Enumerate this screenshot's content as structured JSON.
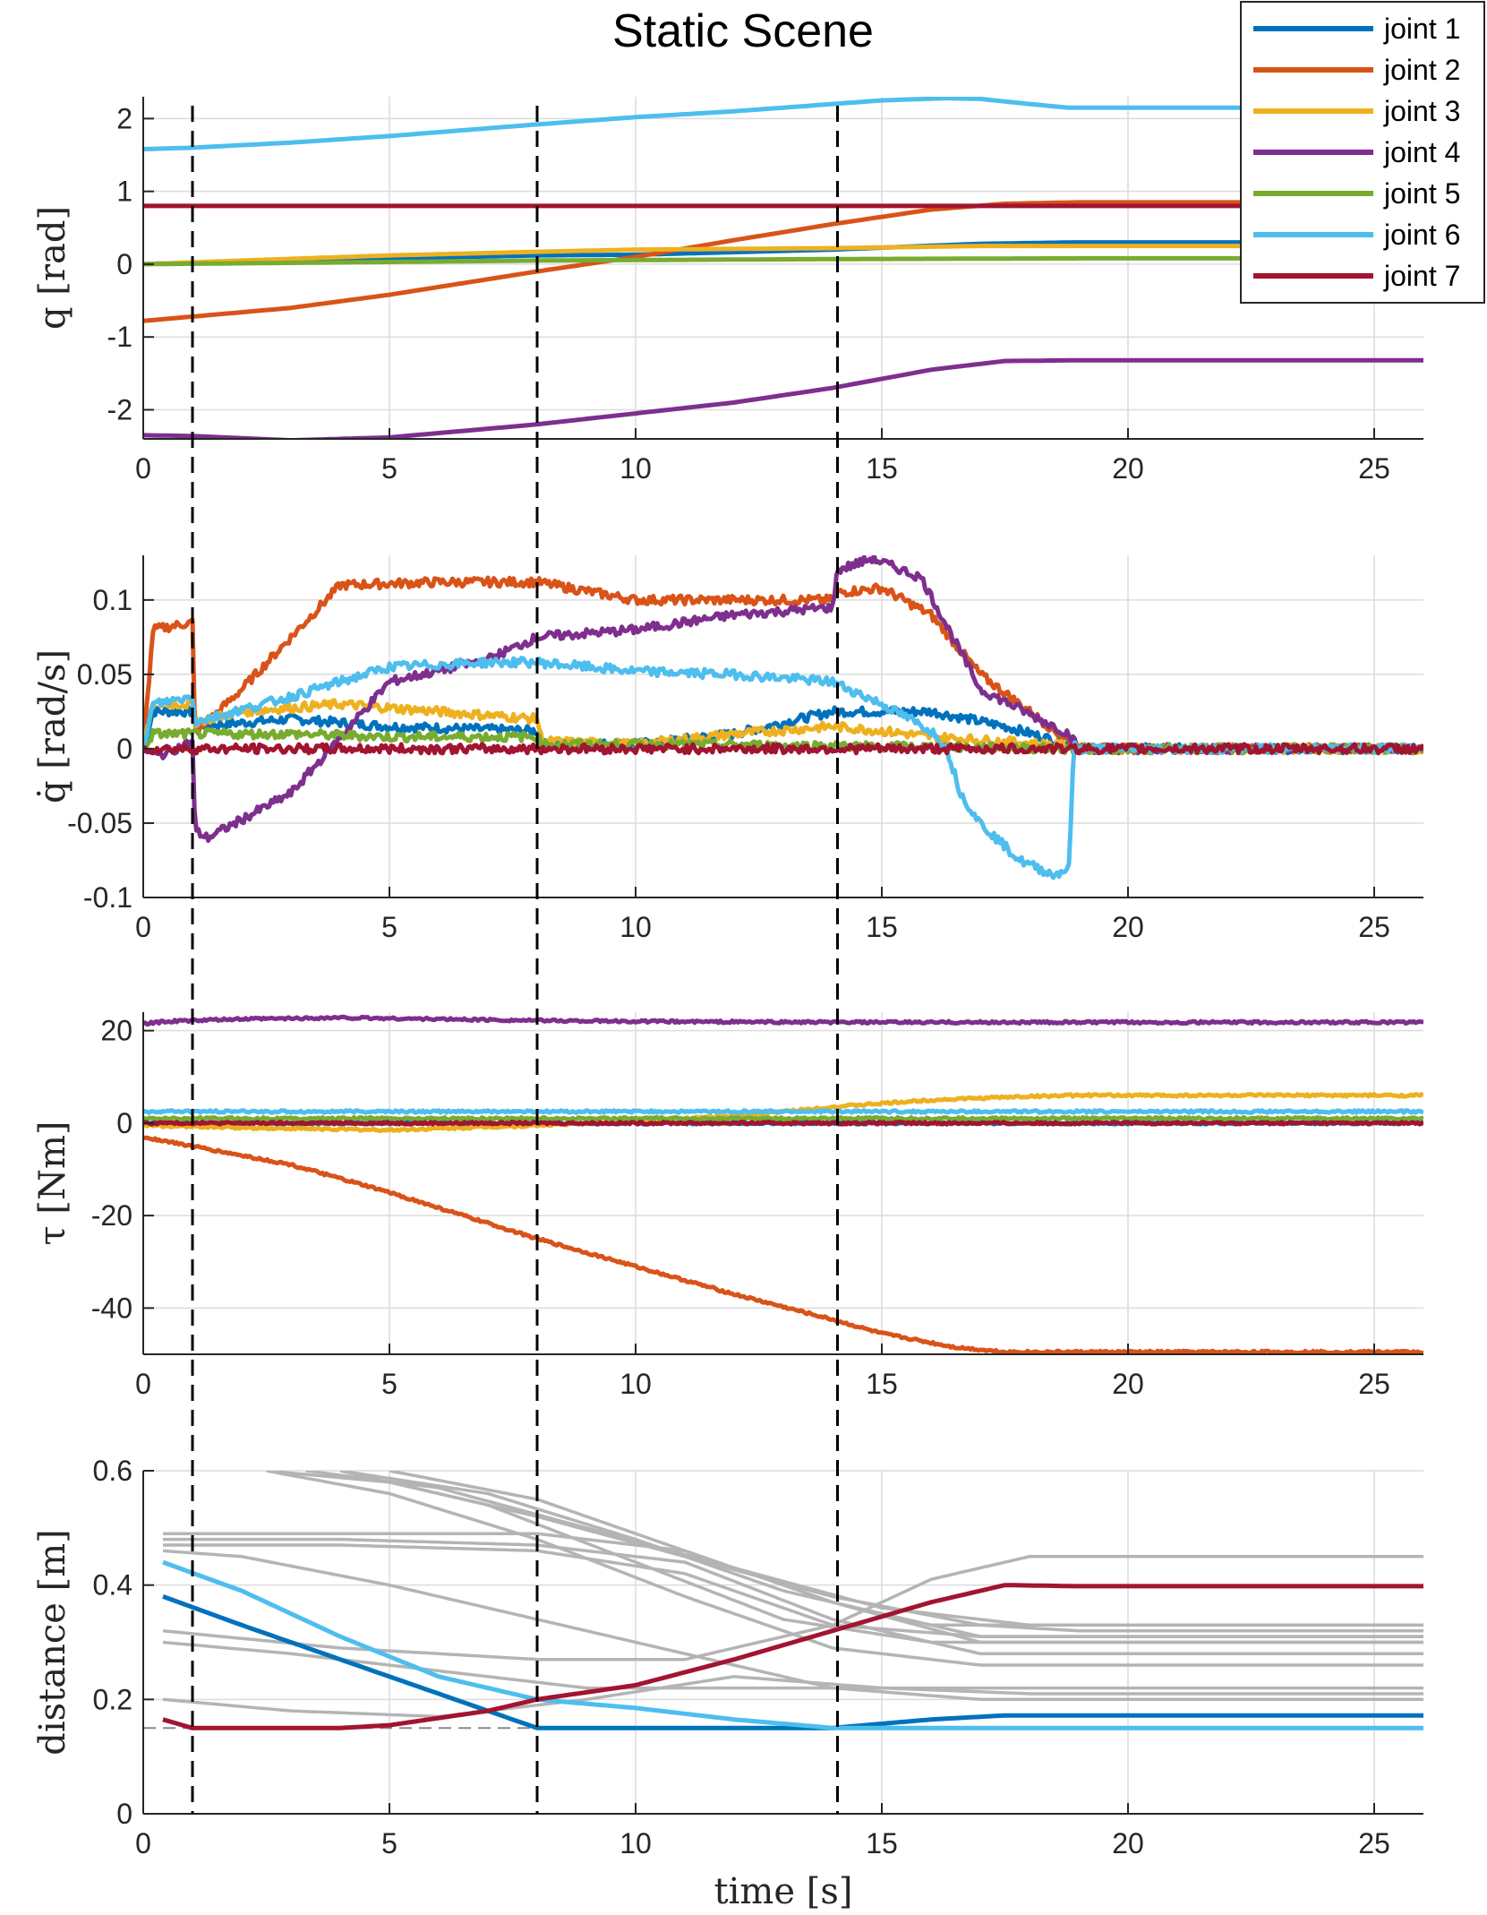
{
  "title": "Static Scene",
  "legend": {
    "position": "top-right",
    "entries": [
      {
        "name": "joint 1",
        "color": "#0072BD"
      },
      {
        "name": "joint 2",
        "color": "#D95319"
      },
      {
        "name": "joint 3",
        "color": "#EDB120"
      },
      {
        "name": "joint 4",
        "color": "#7E2F8E"
      },
      {
        "name": "joint 5",
        "color": "#77AC30"
      },
      {
        "name": "joint 6",
        "color": "#4DBEEE"
      },
      {
        "name": "joint 7",
        "color": "#A2142F"
      }
    ]
  },
  "events_x": [
    1,
    8,
    14.1
  ],
  "chart_data": [
    {
      "type": "line",
      "ylabel": "q [rad]",
      "xlabel": "",
      "xlim": [
        0,
        26
      ],
      "ylim": [
        -2.4,
        2.3
      ],
      "yticks": [
        -2,
        -1,
        0,
        1,
        2
      ],
      "ytick_labels": [
        "-2",
        "-1",
        "0",
        "1",
        "2"
      ],
      "xticks": [
        0,
        5,
        10,
        15,
        20,
        25
      ],
      "xtick_labels": [
        "0",
        "5",
        "10",
        "15",
        "20",
        "25"
      ],
      "grid": true,
      "series": [
        {
          "name": "joint 1",
          "color": "#0072BD",
          "x": [
            0,
            1,
            5,
            8,
            10,
            14,
            17,
            19,
            26
          ],
          "y": [
            0,
            0.02,
            0.08,
            0.12,
            0.13,
            0.2,
            0.28,
            0.3,
            0.3
          ]
        },
        {
          "name": "joint 2",
          "color": "#D95319",
          "x": [
            0,
            1,
            3,
            5,
            8,
            10,
            12,
            14,
            16,
            17.5,
            19,
            26
          ],
          "y": [
            -0.78,
            -0.72,
            -0.6,
            -0.42,
            -0.1,
            0.1,
            0.33,
            0.55,
            0.75,
            0.83,
            0.85,
            0.85
          ]
        },
        {
          "name": "joint 3",
          "color": "#EDB120",
          "x": [
            0,
            2,
            5,
            8,
            10,
            14,
            17,
            19,
            26
          ],
          "y": [
            0,
            0.05,
            0.12,
            0.17,
            0.2,
            0.22,
            0.25,
            0.25,
            0.25
          ]
        },
        {
          "name": "joint 4",
          "color": "#7E2F8E",
          "x": [
            0,
            1,
            3,
            5,
            8,
            10,
            12,
            14,
            16,
            17.5,
            19,
            26
          ],
          "y": [
            -2.35,
            -2.36,
            -2.42,
            -2.38,
            -2.2,
            -2.05,
            -1.9,
            -1.7,
            -1.45,
            -1.33,
            -1.32,
            -1.32
          ]
        },
        {
          "name": "joint 5",
          "color": "#77AC30",
          "x": [
            0,
            5,
            8,
            14,
            19,
            26
          ],
          "y": [
            0,
            0.03,
            0.05,
            0.07,
            0.08,
            0.08
          ]
        },
        {
          "name": "joint 6",
          "color": "#4DBEEE",
          "x": [
            0,
            1,
            3,
            5,
            8,
            10,
            12,
            14,
            15,
            16.3,
            17,
            18,
            18.8,
            20,
            26
          ],
          "y": [
            1.58,
            1.6,
            1.67,
            1.76,
            1.92,
            2.02,
            2.1,
            2.2,
            2.25,
            2.28,
            2.27,
            2.2,
            2.15,
            2.15,
            2.15
          ]
        },
        {
          "name": "joint 7",
          "color": "#A2142F",
          "x": [
            0,
            26
          ],
          "y": [
            0.8,
            0.8
          ]
        }
      ]
    },
    {
      "type": "line",
      "ylabel": "q̇ [rad/s]",
      "xlabel": "",
      "xlim": [
        0,
        26
      ],
      "ylim": [
        -0.1,
        0.13
      ],
      "yticks": [
        -0.1,
        -0.05,
        0,
        0.05,
        0.1
      ],
      "ytick_labels": [
        "-0.1",
        "-0.05",
        "0",
        "0.05",
        "0.1"
      ],
      "xticks": [
        0,
        5,
        10,
        15,
        20,
        25
      ],
      "xtick_labels": [
        "0",
        "5",
        "10",
        "15",
        "20",
        "25"
      ],
      "grid": true,
      "noise": 0.003,
      "series": [
        {
          "name": "joint 1",
          "color": "#0072BD",
          "x": [
            0,
            0.2,
            1,
            1.05,
            3,
            5,
            8,
            8.1,
            10,
            12,
            14,
            16,
            17.5,
            18.8,
            19,
            26
          ],
          "y": [
            0,
            0.025,
            0.025,
            0.015,
            0.02,
            0.015,
            0.012,
            0.003,
            0.003,
            0.01,
            0.025,
            0.025,
            0.015,
            0.003,
            0,
            0
          ]
        },
        {
          "name": "joint 2",
          "color": "#D95319",
          "x": [
            0,
            0.2,
            1,
            1.05,
            2,
            4,
            6,
            8,
            10,
            12,
            14,
            14.1,
            15,
            16,
            17,
            18.8,
            19,
            26
          ],
          "y": [
            0,
            0.08,
            0.085,
            0.01,
            0.04,
            0.11,
            0.112,
            0.112,
            0.1,
            0.1,
            0.1,
            0.105,
            0.108,
            0.09,
            0.05,
            0.005,
            0,
            0
          ]
        },
        {
          "name": "joint 3",
          "color": "#EDB120",
          "x": [
            0,
            0.2,
            1,
            1.05,
            2,
            4,
            6,
            8,
            8.1,
            10,
            12,
            14,
            15,
            16,
            18.8,
            19,
            26
          ],
          "y": [
            0,
            0.03,
            0.03,
            0.018,
            0.025,
            0.03,
            0.025,
            0.02,
            0.005,
            0.003,
            0.01,
            0.015,
            0.012,
            0.008,
            0.002,
            0,
            0
          ]
        },
        {
          "name": "joint 4",
          "color": "#7E2F8E",
          "x": [
            0,
            0.3,
            1,
            1.05,
            1.3,
            3,
            5,
            7,
            8,
            10,
            12,
            14,
            14.1,
            14.8,
            15.8,
            17,
            18.8,
            19,
            26
          ],
          "y": [
            0,
            -0.005,
            0.005,
            -0.055,
            -0.06,
            -0.03,
            0.045,
            0.06,
            0.075,
            0.08,
            0.09,
            0.095,
            0.12,
            0.128,
            0.115,
            0.04,
            0.01,
            0,
            0
          ]
        },
        {
          "name": "joint 5",
          "color": "#77AC30",
          "x": [
            0,
            0.2,
            1,
            3,
            5,
            8,
            8.1,
            10,
            14,
            19,
            26
          ],
          "y": [
            0,
            0.01,
            0.01,
            0.01,
            0.008,
            0.008,
            0.003,
            0.003,
            0.002,
            0,
            0
          ]
        },
        {
          "name": "joint 6",
          "color": "#4DBEEE",
          "x": [
            0,
            0.2,
            1,
            1.05,
            3,
            5,
            7,
            8,
            10,
            12,
            14,
            15,
            16,
            16.3,
            16.6,
            17,
            17.8,
            18.5,
            18.8,
            18.9,
            19,
            26
          ],
          "y": [
            0,
            0.03,
            0.035,
            0.018,
            0.035,
            0.055,
            0.058,
            0.058,
            0.052,
            0.05,
            0.045,
            0.03,
            0.012,
            0.002,
            -0.03,
            -0.05,
            -0.075,
            -0.085,
            -0.08,
            0.002,
            0,
            0
          ]
        },
        {
          "name": "joint 7",
          "color": "#A2142F",
          "x": [
            0,
            26
          ],
          "y": [
            0,
            0
          ]
        }
      ]
    },
    {
      "type": "line",
      "ylabel": "τ [Nm]",
      "xlabel": "",
      "xlim": [
        0,
        26
      ],
      "ylim": [
        -50,
        24
      ],
      "yticks": [
        -40,
        -20,
        0,
        20
      ],
      "ytick_labels": [
        "-40",
        "-20",
        "0",
        "20"
      ],
      "xticks": [
        0,
        5,
        10,
        15,
        20,
        25
      ],
      "xtick_labels": [
        "0",
        "5",
        "10",
        "15",
        "20",
        "25"
      ],
      "grid": true,
      "noise": 0.25,
      "series": [
        {
          "name": "joint 1",
          "color": "#0072BD",
          "x": [
            0,
            26
          ],
          "y": [
            0,
            0
          ]
        },
        {
          "name": "joint 2",
          "color": "#D95319",
          "x": [
            0,
            1,
            3,
            5,
            8,
            10,
            12,
            14,
            15,
            16.5,
            17.5,
            19,
            26
          ],
          "y": [
            -3,
            -5,
            -9,
            -15,
            -25,
            -31,
            -37,
            -42.5,
            -45.5,
            -48.5,
            -49.5,
            -49.5,
            -49.5
          ]
        },
        {
          "name": "joint 3",
          "color": "#EDB120",
          "x": [
            0,
            2,
            5,
            8,
            10,
            12,
            14,
            16,
            18,
            19,
            26
          ],
          "y": [
            -0.5,
            -1,
            -1.5,
            -0.5,
            0.5,
            1.5,
            3.5,
            5,
            5.8,
            6,
            6
          ]
        },
        {
          "name": "joint 4",
          "color": "#7E2F8E",
          "x": [
            0,
            0.5,
            2,
            4,
            8,
            10,
            14,
            19,
            26
          ],
          "y": [
            21.5,
            22,
            22.5,
            22.8,
            22.2,
            22,
            21.8,
            21.8,
            21.8
          ]
        },
        {
          "name": "joint 5",
          "color": "#77AC30",
          "x": [
            0,
            26
          ],
          "y": [
            1,
            1
          ]
        },
        {
          "name": "joint 6",
          "color": "#4DBEEE",
          "x": [
            0,
            26
          ],
          "y": [
            2.5,
            2.5
          ]
        },
        {
          "name": "joint 7",
          "color": "#A2142F",
          "x": [
            0,
            26
          ],
          "y": [
            0,
            0
          ]
        }
      ]
    },
    {
      "type": "line",
      "ylabel": "distance [m]",
      "xlabel": "time [s]",
      "xlim": [
        0,
        26
      ],
      "ylim": [
        0,
        0.6
      ],
      "yticks": [
        0,
        0.2,
        0.4,
        0.6
      ],
      "ytick_labels": [
        "0",
        "0.2",
        "0.4",
        "0.6"
      ],
      "xticks": [
        0,
        5,
        10,
        15,
        20,
        25
      ],
      "xtick_labels": [
        "0",
        "5",
        "10",
        "15",
        "20",
        "25"
      ],
      "grid": true,
      "threshold": 0.15,
      "background_series": [
        {
          "x": [
            2.5,
            5,
            8,
            11,
            14,
            17,
            19,
            26
          ],
          "y": [
            0.6,
            0.58,
            0.52,
            0.45,
            0.38,
            0.33,
            0.32,
            0.32
          ]
        },
        {
          "x": [
            3.3,
            6,
            9,
            12,
            15,
            18,
            26
          ],
          "y": [
            0.6,
            0.57,
            0.5,
            0.43,
            0.36,
            0.33,
            0.33
          ]
        },
        {
          "x": [
            4,
            7,
            10,
            13,
            16,
            19,
            26
          ],
          "y": [
            0.6,
            0.56,
            0.48,
            0.39,
            0.33,
            0.33,
            0.33
          ]
        },
        {
          "x": [
            5,
            8,
            11,
            14,
            17,
            20,
            26
          ],
          "y": [
            0.6,
            0.55,
            0.46,
            0.37,
            0.31,
            0.31,
            0.31
          ]
        },
        {
          "x": [
            2.5,
            5,
            8,
            11,
            14,
            17,
            26
          ],
          "y": [
            0.6,
            0.56,
            0.48,
            0.38,
            0.29,
            0.26,
            0.26
          ]
        },
        {
          "x": [
            4,
            7,
            10,
            13,
            16,
            19,
            26
          ],
          "y": [
            0.6,
            0.54,
            0.44,
            0.34,
            0.3,
            0.3,
            0.3
          ]
        },
        {
          "x": [
            0.4,
            4,
            8,
            11,
            14,
            17,
            26
          ],
          "y": [
            0.49,
            0.49,
            0.49,
            0.46,
            0.37,
            0.3,
            0.3
          ]
        },
        {
          "x": [
            0.4,
            4,
            8,
            11,
            14,
            17,
            26
          ],
          "y": [
            0.48,
            0.48,
            0.47,
            0.44,
            0.34,
            0.28,
            0.28
          ]
        },
        {
          "x": [
            0.4,
            4,
            8,
            11,
            14,
            17,
            26
          ],
          "y": [
            0.47,
            0.47,
            0.46,
            0.42,
            0.33,
            0.31,
            0.31
          ]
        },
        {
          "x": [
            0.4,
            2,
            5,
            8,
            11,
            14,
            17,
            26
          ],
          "y": [
            0.46,
            0.45,
            0.4,
            0.34,
            0.28,
            0.22,
            0.2,
            0.2
          ]
        },
        {
          "x": [
            0.4,
            3,
            6,
            9,
            12,
            15,
            26
          ],
          "y": [
            0.3,
            0.28,
            0.25,
            0.22,
            0.22,
            0.22,
            0.22
          ]
        },
        {
          "x": [
            0.4,
            3,
            6,
            9,
            12,
            15,
            18,
            26
          ],
          "y": [
            0.2,
            0.18,
            0.17,
            0.2,
            0.24,
            0.22,
            0.21,
            0.21
          ]
        },
        {
          "x": [
            0.4,
            4,
            8,
            11,
            14,
            16,
            18,
            26
          ],
          "y": [
            0.32,
            0.29,
            0.27,
            0.27,
            0.33,
            0.41,
            0.45,
            0.45
          ]
        }
      ],
      "series": [
        {
          "name": "joint 1",
          "color": "#0072BD",
          "x": [
            0.4,
            2,
            4,
            6,
            7,
            8,
            10,
            14,
            16,
            17.5,
            19,
            26
          ],
          "y": [
            0.38,
            0.33,
            0.27,
            0.21,
            0.18,
            0.15,
            0.15,
            0.15,
            0.165,
            0.172,
            0.172,
            0.172
          ]
        },
        {
          "name": "joint 6",
          "color": "#4DBEEE",
          "x": [
            0.4,
            2,
            4,
            6,
            8,
            10,
            12,
            14,
            15,
            17,
            26
          ],
          "y": [
            0.44,
            0.39,
            0.31,
            0.24,
            0.2,
            0.185,
            0.165,
            0.15,
            0.15,
            0.15,
            0.15
          ]
        },
        {
          "name": "joint 7",
          "color": "#A2142F",
          "x": [
            0.4,
            1,
            2,
            4,
            5,
            7,
            8,
            10,
            12,
            14,
            16,
            17.5,
            19,
            26
          ],
          "y": [
            0.165,
            0.15,
            0.15,
            0.15,
            0.155,
            0.18,
            0.2,
            0.225,
            0.27,
            0.32,
            0.37,
            0.4,
            0.398,
            0.398
          ]
        }
      ]
    }
  ]
}
